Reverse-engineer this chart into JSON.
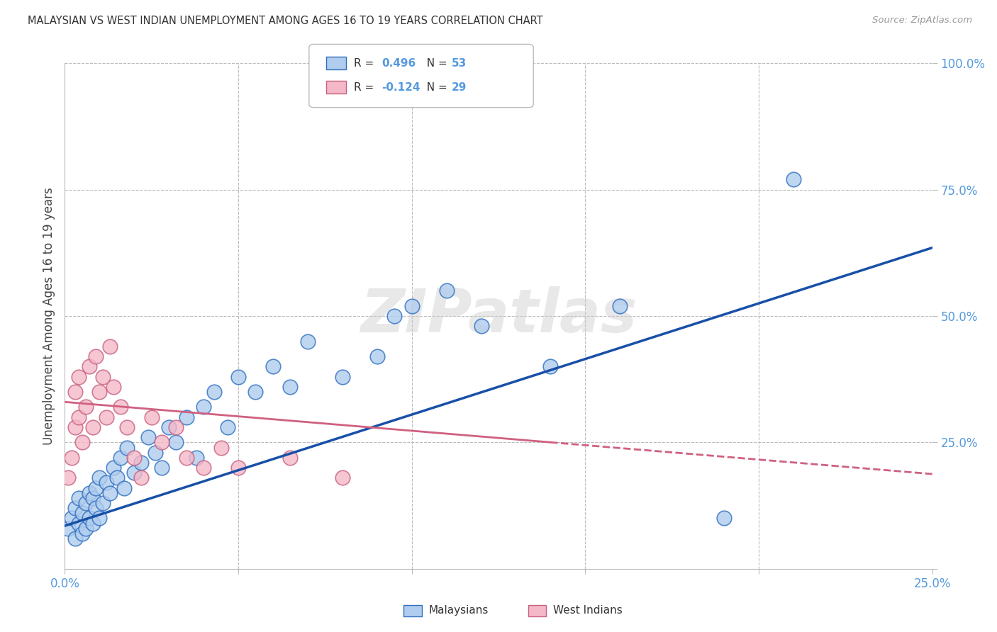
{
  "title": "MALAYSIAN VS WEST INDIAN UNEMPLOYMENT AMONG AGES 16 TO 19 YEARS CORRELATION CHART",
  "source": "Source: ZipAtlas.com",
  "ylabel": "Unemployment Among Ages 16 to 19 years",
  "xlim": [
    0.0,
    0.25
  ],
  "ylim": [
    0.0,
    1.0
  ],
  "blue_R": 0.496,
  "blue_N": 53,
  "pink_R": -0.124,
  "pink_N": 29,
  "blue_face": "#B0CCEE",
  "blue_edge": "#3070C0",
  "pink_face": "#F4B8C8",
  "pink_edge": "#C86080",
  "blue_line_color": "#1850A8",
  "pink_line_color": "#D06080",
  "tick_color": "#5599DD",
  "grid_color": "#BBBBBB",
  "bg_color": "#FFFFFF",
  "title_color": "#333333",
  "label_color": "#444444",
  "blue_x": [
    0.001,
    0.002,
    0.003,
    0.003,
    0.004,
    0.004,
    0.005,
    0.005,
    0.006,
    0.006,
    0.007,
    0.007,
    0.008,
    0.008,
    0.009,
    0.009,
    0.01,
    0.01,
    0.011,
    0.012,
    0.013,
    0.014,
    0.015,
    0.016,
    0.017,
    0.018,
    0.02,
    0.022,
    0.024,
    0.026,
    0.028,
    0.03,
    0.032,
    0.035,
    0.038,
    0.04,
    0.043,
    0.047,
    0.05,
    0.055,
    0.06,
    0.065,
    0.07,
    0.08,
    0.09,
    0.095,
    0.1,
    0.11,
    0.12,
    0.14,
    0.16,
    0.19,
    0.21
  ],
  "blue_y": [
    0.08,
    0.1,
    0.06,
    0.12,
    0.09,
    0.14,
    0.07,
    0.11,
    0.08,
    0.13,
    0.1,
    0.15,
    0.09,
    0.14,
    0.12,
    0.16,
    0.1,
    0.18,
    0.13,
    0.17,
    0.15,
    0.2,
    0.18,
    0.22,
    0.16,
    0.24,
    0.19,
    0.21,
    0.26,
    0.23,
    0.2,
    0.28,
    0.25,
    0.3,
    0.22,
    0.32,
    0.35,
    0.28,
    0.38,
    0.35,
    0.4,
    0.36,
    0.45,
    0.38,
    0.42,
    0.5,
    0.52,
    0.55,
    0.48,
    0.4,
    0.52,
    0.1,
    0.77
  ],
  "pink_x": [
    0.001,
    0.002,
    0.003,
    0.003,
    0.004,
    0.004,
    0.005,
    0.006,
    0.007,
    0.008,
    0.009,
    0.01,
    0.011,
    0.012,
    0.013,
    0.014,
    0.016,
    0.018,
    0.02,
    0.022,
    0.025,
    0.028,
    0.032,
    0.035,
    0.04,
    0.045,
    0.05,
    0.065,
    0.08
  ],
  "pink_y": [
    0.18,
    0.22,
    0.28,
    0.35,
    0.3,
    0.38,
    0.25,
    0.32,
    0.4,
    0.28,
    0.42,
    0.35,
    0.38,
    0.3,
    0.44,
    0.36,
    0.32,
    0.28,
    0.22,
    0.18,
    0.3,
    0.25,
    0.28,
    0.22,
    0.2,
    0.24,
    0.2,
    0.22,
    0.18
  ]
}
